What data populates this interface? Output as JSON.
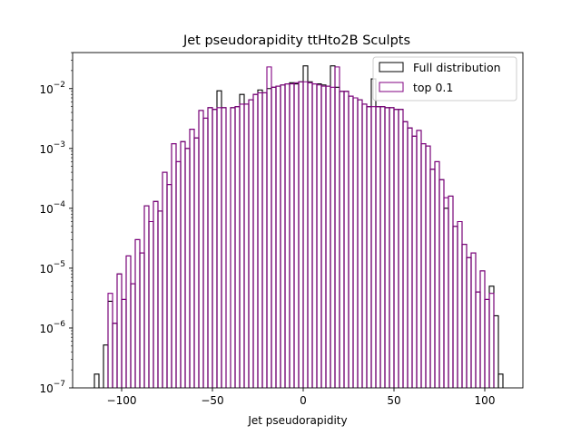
{
  "chart_data": {
    "type": "histogram-step",
    "title": "Jet pseudorapidity ttHto2B Sculpts",
    "xlabel": "Jet pseudorapidity",
    "ylabel": "",
    "xlim": [
      -127,
      121
    ],
    "ylim": [
      1e-07,
      0.04
    ],
    "yscale": "log",
    "xticks": [
      -100,
      -50,
      0,
      50,
      100
    ],
    "yticks": [
      {
        "value": 1e-07,
        "base": "10",
        "exp": "−7"
      },
      {
        "value": 1e-06,
        "base": "10",
        "exp": "−6"
      },
      {
        "value": 1e-05,
        "base": "10",
        "exp": "−5"
      },
      {
        "value": 0.0001,
        "base": "10",
        "exp": "−4"
      },
      {
        "value": 0.001,
        "base": "10",
        "exp": "−3"
      },
      {
        "value": 0.01,
        "base": "10",
        "exp": "−2"
      }
    ],
    "legend_position": "top-right",
    "bin_width": 2.5,
    "series": [
      {
        "name": "Full distribution",
        "color": "#000000",
        "bins": [
          [
            -115,
            1.7e-07
          ],
          [
            -110,
            5.2e-07
          ],
          [
            -107.5,
            2.8e-06
          ],
          [
            -105,
            1.2e-06
          ],
          [
            -102.5,
            8e-06
          ],
          [
            -100,
            3e-06
          ],
          [
            -97.5,
            1.6e-05
          ],
          [
            -95,
            5.5e-06
          ],
          [
            -92.5,
            3e-05
          ],
          [
            -90,
            1.8e-05
          ],
          [
            -87.5,
            0.00011
          ],
          [
            -85,
            6e-05
          ],
          [
            -82.5,
            0.00013
          ],
          [
            -80,
            9e-05
          ],
          [
            -77.5,
            0.0004
          ],
          [
            -75,
            0.00025
          ],
          [
            -72.5,
            0.0012
          ],
          [
            -70,
            0.0006
          ],
          [
            -67.5,
            0.0013
          ],
          [
            -65,
            0.001
          ],
          [
            -62.5,
            0.0021
          ],
          [
            -60,
            0.0015
          ],
          [
            -57.5,
            0.0043
          ],
          [
            -55,
            0.0032
          ],
          [
            -52.5,
            0.0048
          ],
          [
            -50,
            0.0045
          ],
          [
            -47.5,
            0.0092
          ],
          [
            -45,
            0.0048
          ],
          [
            -40,
            0.0048
          ],
          [
            -37.5,
            0.005
          ],
          [
            -35,
            0.008
          ],
          [
            -32.5,
            0.0055
          ],
          [
            -30,
            0.0065
          ],
          [
            -27.5,
            0.008
          ],
          [
            -25,
            0.0095
          ],
          [
            -22.5,
            0.0085
          ],
          [
            -20,
            0.01
          ],
          [
            -17.5,
            0.0105
          ],
          [
            -15,
            0.011
          ],
          [
            -12.5,
            0.0115
          ],
          [
            -10,
            0.012
          ],
          [
            -7.5,
            0.0125
          ],
          [
            -5,
            0.012
          ],
          [
            -2.5,
            0.013
          ],
          [
            0,
            0.024
          ],
          [
            2.5,
            0.013
          ],
          [
            5,
            0.012
          ],
          [
            7.5,
            0.012
          ],
          [
            10,
            0.0115
          ],
          [
            12.5,
            0.011
          ],
          [
            15,
            0.024
          ],
          [
            17.5,
            0.0105
          ],
          [
            20,
            0.009
          ],
          [
            22.5,
            0.009
          ],
          [
            25,
            0.0075
          ],
          [
            27.5,
            0.007
          ],
          [
            30,
            0.0065
          ],
          [
            32.5,
            0.0055
          ],
          [
            35,
            0.005
          ],
          [
            37.5,
            0.0145
          ],
          [
            40,
            0.005
          ],
          [
            42.5,
            0.005
          ],
          [
            45,
            0.0048
          ],
          [
            47.5,
            0.0048
          ],
          [
            50,
            0.0045
          ],
          [
            52.5,
            0.0045
          ],
          [
            55,
            0.0028
          ],
          [
            57.5,
            0.0022
          ],
          [
            60,
            0.0016
          ],
          [
            62.5,
            0.002
          ],
          [
            65,
            0.0012
          ],
          [
            67.5,
            0.0011
          ],
          [
            70,
            0.00045
          ],
          [
            72.5,
            0.0006
          ],
          [
            75,
            0.0003
          ],
          [
            77.5,
            0.0001
          ],
          [
            80,
            0.00016
          ],
          [
            82.5,
            5e-05
          ],
          [
            85,
            6e-05
          ],
          [
            87.5,
            2.5e-05
          ],
          [
            90,
            1.5e-05
          ],
          [
            92.5,
            1.8e-05
          ],
          [
            95,
            4e-06
          ],
          [
            97.5,
            9e-06
          ],
          [
            100,
            3e-06
          ],
          [
            102.5,
            5e-06
          ],
          [
            105,
            1.6e-06
          ],
          [
            107.5,
            1.7e-07
          ]
        ]
      },
      {
        "name": "top 0.1",
        "color": "#800080",
        "bins": [
          [
            -107.5,
            3.8e-06
          ],
          [
            -105,
            1.2e-06
          ],
          [
            -102.5,
            8e-06
          ],
          [
            -100,
            3e-06
          ],
          [
            -97.5,
            1.6e-05
          ],
          [
            -95,
            5.5e-06
          ],
          [
            -92.5,
            3e-05
          ],
          [
            -90,
            1.8e-05
          ],
          [
            -87.5,
            0.00011
          ],
          [
            -85,
            6e-05
          ],
          [
            -82.5,
            0.00013
          ],
          [
            -80,
            9e-05
          ],
          [
            -77.5,
            0.0004
          ],
          [
            -75,
            0.00025
          ],
          [
            -72.5,
            0.0012
          ],
          [
            -70,
            0.0006
          ],
          [
            -67.5,
            0.0013
          ],
          [
            -65,
            0.001
          ],
          [
            -62.5,
            0.0021
          ],
          [
            -60,
            0.0015
          ],
          [
            -57.5,
            0.0043
          ],
          [
            -55,
            0.0032
          ],
          [
            -52.5,
            0.0048
          ],
          [
            -50,
            0.0045
          ],
          [
            -47.5,
            0.0048
          ],
          [
            -45,
            0.0048
          ],
          [
            -40,
            0.0048
          ],
          [
            -37.5,
            0.005
          ],
          [
            -35,
            0.0055
          ],
          [
            -32.5,
            0.0055
          ],
          [
            -30,
            0.0065
          ],
          [
            -27.5,
            0.008
          ],
          [
            -25,
            0.0085
          ],
          [
            -22.5,
            0.0085
          ],
          [
            -20,
            0.023
          ],
          [
            -17.5,
            0.0105
          ],
          [
            -15,
            0.011
          ],
          [
            -12.5,
            0.0115
          ],
          [
            -10,
            0.012
          ],
          [
            -7.5,
            0.012
          ],
          [
            -5,
            0.0125
          ],
          [
            -2.5,
            0.013
          ],
          [
            0,
            0.013
          ],
          [
            2.5,
            0.0125
          ],
          [
            5,
            0.012
          ],
          [
            7.5,
            0.0115
          ],
          [
            10,
            0.011
          ],
          [
            12.5,
            0.011
          ],
          [
            15,
            0.0105
          ],
          [
            17.5,
            0.023
          ],
          [
            20,
            0.009
          ],
          [
            22.5,
            0.009
          ],
          [
            25,
            0.0075
          ],
          [
            27.5,
            0.007
          ],
          [
            30,
            0.0065
          ],
          [
            32.5,
            0.0055
          ],
          [
            35,
            0.005
          ],
          [
            37.5,
            0.005
          ],
          [
            40,
            0.005
          ],
          [
            42.5,
            0.005
          ],
          [
            45,
            0.0048
          ],
          [
            47.5,
            0.0048
          ],
          [
            50,
            0.0045
          ],
          [
            52.5,
            0.0045
          ],
          [
            55,
            0.0028
          ],
          [
            57.5,
            0.0022
          ],
          [
            60,
            0.0016
          ],
          [
            62.5,
            0.002
          ],
          [
            65,
            0.0012
          ],
          [
            67.5,
            0.0011
          ],
          [
            70,
            0.00045
          ],
          [
            72.5,
            0.0006
          ],
          [
            75,
            0.0003
          ],
          [
            77.5,
            0.00015
          ],
          [
            80,
            0.00016
          ],
          [
            82.5,
            5e-05
          ],
          [
            85,
            6e-05
          ],
          [
            87.5,
            2.5e-05
          ],
          [
            90,
            1.5e-05
          ],
          [
            92.5,
            1.8e-05
          ],
          [
            95,
            4e-06
          ],
          [
            97.5,
            9e-06
          ],
          [
            100,
            3e-06
          ],
          [
            102.5,
            3.8e-06
          ]
        ]
      }
    ]
  }
}
